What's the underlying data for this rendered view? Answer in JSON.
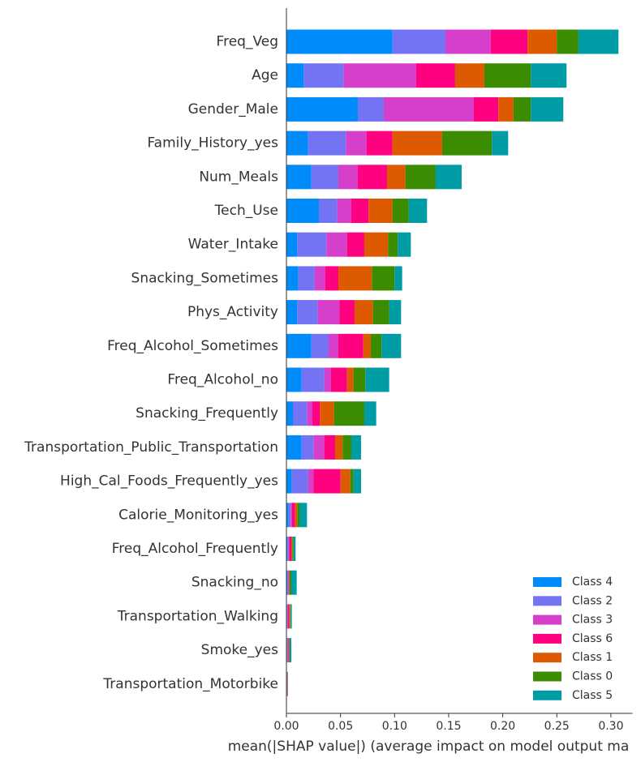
{
  "chart_data": {
    "type": "bar",
    "orientation": "horizontal",
    "stacked": true,
    "xlabel": "mean(|SHAP value|) (average impact on model output ma",
    "xlim": [
      0,
      0.32
    ],
    "xticks": [
      0.0,
      0.05,
      0.1,
      0.15,
      0.2,
      0.25,
      0.3
    ],
    "xtick_labels": [
      "0.00",
      "0.05",
      "0.10",
      "0.15",
      "0.20",
      "0.25",
      "0.30"
    ],
    "grid": false,
    "legend_position": "bottom-right",
    "categories": [
      "Freq_Veg",
      "Age",
      "Gender_Male",
      "Family_History_yes",
      "Num_Meals",
      "Tech_Use",
      "Water_Intake",
      "Snacking_Sometimes",
      "Phys_Activity",
      "Freq_Alcohol_Sometimes",
      "Freq_Alcohol_no",
      "Snacking_Frequently",
      "Transportation_Public_Transportation",
      "High_Cal_Foods_Frequently_yes",
      "Calorie_Monitoring_yes",
      "Freq_Alcohol_Frequently",
      "Snacking_no",
      "Transportation_Walking",
      "Smoke_yes",
      "Transportation_Motorbike"
    ],
    "series": [
      {
        "name": "Class 4",
        "color": "#008bfb",
        "values": [
          0.098,
          0.016,
          0.066,
          0.02,
          0.023,
          0.03,
          0.01,
          0.011,
          0.01,
          0.023,
          0.014,
          0.006,
          0.014,
          0.005,
          0.002,
          0.001,
          0.001,
          0.0005,
          0.0005,
          0.0003
        ]
      },
      {
        "name": "Class 2",
        "color": "#7473f4",
        "values": [
          0.049,
          0.037,
          0.024,
          0.035,
          0.025,
          0.017,
          0.027,
          0.015,
          0.019,
          0.016,
          0.021,
          0.013,
          0.011,
          0.015,
          0.002,
          0.001,
          0.0005,
          0.0005,
          0.0005,
          0.0002
        ]
      },
      {
        "name": "Class 3",
        "color": "#d63fca",
        "values": [
          0.042,
          0.067,
          0.083,
          0.019,
          0.018,
          0.013,
          0.019,
          0.01,
          0.02,
          0.009,
          0.006,
          0.005,
          0.01,
          0.005,
          0.001,
          0.0005,
          0.0005,
          0.0005,
          0.0005,
          0.0002
        ]
      },
      {
        "name": "Class 6",
        "color": "#ff0080",
        "values": [
          0.034,
          0.036,
          0.023,
          0.024,
          0.027,
          0.016,
          0.016,
          0.012,
          0.014,
          0.023,
          0.015,
          0.007,
          0.01,
          0.025,
          0.003,
          0.002,
          0.0005,
          0.001,
          0.0005,
          0.0002
        ]
      },
      {
        "name": "Class 1",
        "color": "#de5a00",
        "values": [
          0.027,
          0.027,
          0.014,
          0.046,
          0.017,
          0.022,
          0.022,
          0.031,
          0.017,
          0.007,
          0.006,
          0.013,
          0.007,
          0.009,
          0.002,
          0.001,
          0.0005,
          0.001,
          0.0005,
          0.0002
        ]
      },
      {
        "name": "Class 0",
        "color": "#3b8c00",
        "values": [
          0.02,
          0.043,
          0.016,
          0.046,
          0.028,
          0.015,
          0.009,
          0.021,
          0.015,
          0.01,
          0.011,
          0.028,
          0.008,
          0.003,
          0.002,
          0.001,
          0.0015,
          0.0005,
          0.0005,
          0.0002
        ]
      },
      {
        "name": "Class 5",
        "color": "#009ca6",
        "values": [
          0.037,
          0.033,
          0.03,
          0.015,
          0.024,
          0.017,
          0.012,
          0.007,
          0.011,
          0.018,
          0.022,
          0.011,
          0.009,
          0.007,
          0.007,
          0.002,
          0.005,
          0.001,
          0.0015,
          0.0002
        ]
      }
    ],
    "legend_order": [
      "Class 4",
      "Class 2",
      "Class 3",
      "Class 6",
      "Class 1",
      "Class 0",
      "Class 5"
    ]
  }
}
